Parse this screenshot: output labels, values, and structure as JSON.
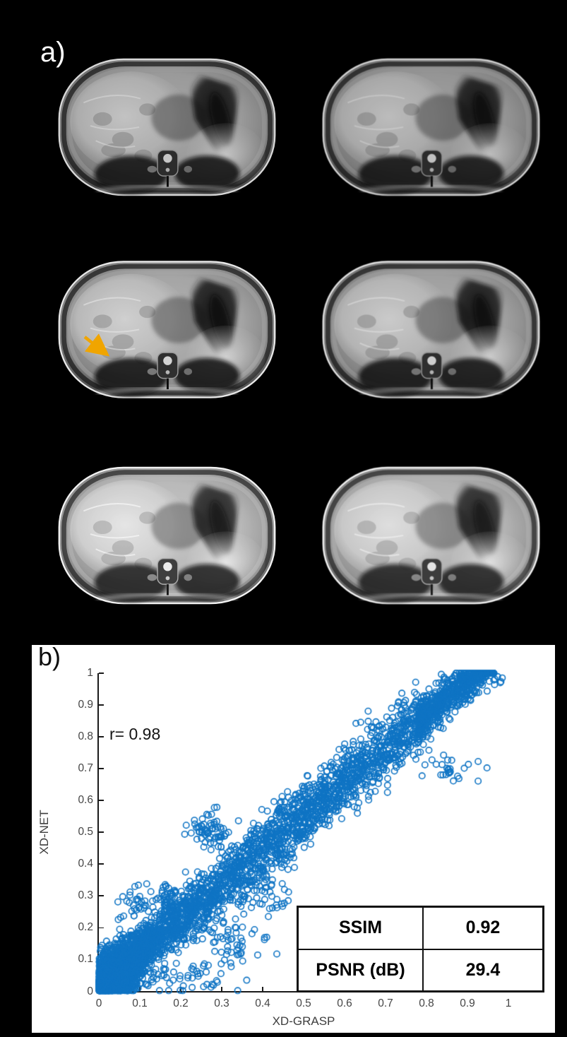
{
  "figure": {
    "background": "#000000",
    "panel_a": {
      "label": "a)",
      "grid_rows": 3,
      "grid_cols": 2,
      "content": "axial abdominal MRI frames",
      "arrow": {
        "color": "#F0A500",
        "target_cell": "row2-col1"
      }
    },
    "panel_b": {
      "label": "b)",
      "background": "#ffffff"
    }
  },
  "chart_data": {
    "type": "scatter",
    "title": "",
    "xlabel": "XD-GRASP",
    "ylabel": "XD-NET",
    "xlim": [
      0,
      1
    ],
    "ylim": [
      0,
      1
    ],
    "xticks": [
      "0",
      "0.1",
      "0.2",
      "0.3",
      "0.4",
      "0.5",
      "0.6",
      "0.7",
      "0.8",
      "0.9",
      "1"
    ],
    "yticks": [
      "0",
      "0.1",
      "0.2",
      "0.3",
      "0.4",
      "0.5",
      "0.6",
      "0.7",
      "0.8",
      "0.9",
      "1"
    ],
    "grid_on": false,
    "legend": null,
    "annotation": "r= 0.98",
    "correlation": 0.98,
    "axis_color": "#1a1a1a",
    "tick_label_color": "#454545",
    "marker": {
      "shape": "open-circle",
      "color": "#0F74C4",
      "radius_px": 4.2,
      "stroke_px": 1.6
    },
    "point_cloud": {
      "seed": 1337,
      "slope": 1.06,
      "intercept": 0.02,
      "band": {
        "n": 2600,
        "x_max": 0.78,
        "x_exponent": 1.25,
        "sigma": 0.03
      },
      "corner": {
        "n": 2000,
        "sx": 0.055,
        "sy": 0.05
      },
      "tip": {
        "n": 650,
        "x_min": 0.78,
        "x_max": 0.965,
        "sigma": 0.03
      },
      "clusters": [
        {
          "cx": 0.27,
          "cy": 0.5,
          "sx": 0.022,
          "sy": 0.028,
          "n": 70
        },
        {
          "cx": 0.17,
          "cy": 0.295,
          "sx": 0.018,
          "sy": 0.022,
          "n": 45
        },
        {
          "cx": 0.32,
          "cy": 0.155,
          "sx": 0.045,
          "sy": 0.035,
          "n": 55
        },
        {
          "cx": 0.4,
          "cy": 0.3,
          "sx": 0.03,
          "sy": 0.03,
          "n": 40
        },
        {
          "cx": 0.22,
          "cy": 0.04,
          "sx": 0.05,
          "sy": 0.025,
          "n": 45
        },
        {
          "cx": 0.09,
          "cy": 0.27,
          "sx": 0.02,
          "sy": 0.03,
          "n": 30
        },
        {
          "cx": 0.86,
          "cy": 0.7,
          "sx": 0.035,
          "sy": 0.022,
          "n": 28
        },
        {
          "cx": 0.9,
          "cy": 0.97,
          "sx": 0.035,
          "sy": 0.02,
          "n": 60
        }
      ]
    },
    "overlay_table": {
      "rows": [
        {
          "label": "SSIM",
          "value": "0.92"
        },
        {
          "label": "PSNR (dB)",
          "value": "29.4"
        }
      ]
    }
  }
}
